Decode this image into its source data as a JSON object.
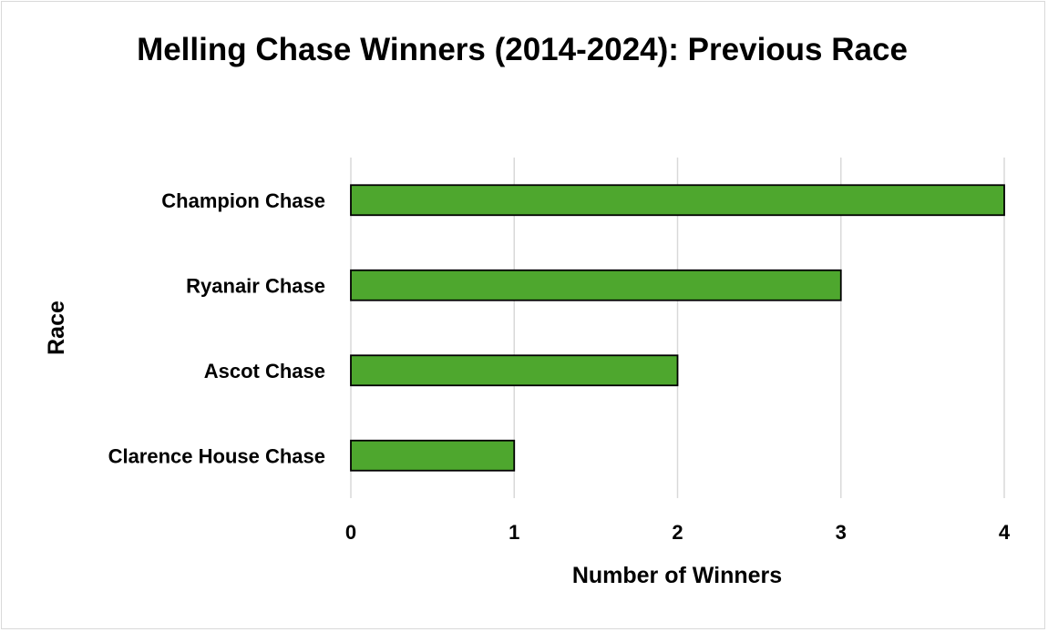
{
  "chart_data": {
    "type": "bar",
    "orientation": "horizontal",
    "title": "Melling Chase Winners (2014-2024): Previous Race",
    "xlabel": "Number of Winners",
    "ylabel": "Race",
    "categories": [
      "Champion Chase",
      "Ryanair Chase",
      "Ascot Chase",
      "Clarence House Chase"
    ],
    "values": [
      4,
      3,
      2,
      1
    ],
    "xlim": [
      0,
      4
    ],
    "xticks": [
      "0",
      "1",
      "2",
      "3",
      "4"
    ],
    "grid": true,
    "legend": "none",
    "colors": {
      "bar_fill": "#4ea72e",
      "bar_stroke": "#000000",
      "grid": "#d9d9d9"
    }
  }
}
